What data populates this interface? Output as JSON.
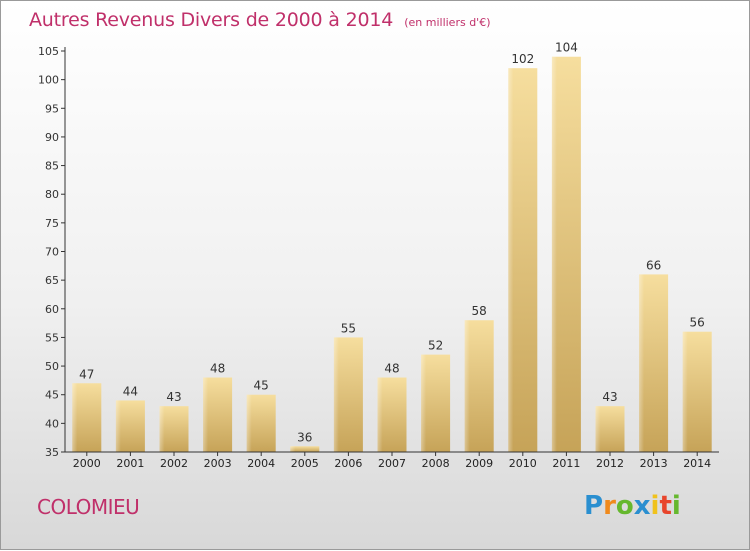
{
  "title": "Autres Revenus Divers de 2000 à 2014",
  "subtitle": "(en milliers d'€)",
  "commune": "COLOMIEU",
  "logo": {
    "letters": [
      "P",
      "r",
      "o",
      "x",
      "i",
      "t",
      "i"
    ],
    "colors": [
      "#2a8fd0",
      "#f08a1c",
      "#66b82e",
      "#2a8fd0",
      "#f0c21c",
      "#e8452c",
      "#66b82e"
    ]
  },
  "colors": {
    "title": "#c0306a",
    "bar_light": "#f5dc9a",
    "bar_dark": "#c8a55a",
    "axis": "#333333"
  },
  "chart_data": {
    "type": "bar",
    "categories": [
      "2000",
      "2001",
      "2002",
      "2003",
      "2004",
      "2005",
      "2006",
      "2007",
      "2008",
      "2009",
      "2010",
      "2011",
      "2012",
      "2013",
      "2014"
    ],
    "values": [
      47,
      44,
      43,
      48,
      45,
      36,
      55,
      48,
      52,
      58,
      102,
      104,
      43,
      66,
      56
    ],
    "ylim": [
      35,
      105
    ],
    "yticks": [
      35,
      40,
      45,
      50,
      55,
      60,
      65,
      70,
      75,
      80,
      85,
      90,
      95,
      100,
      105
    ],
    "grid": false,
    "data_labels": true
  }
}
